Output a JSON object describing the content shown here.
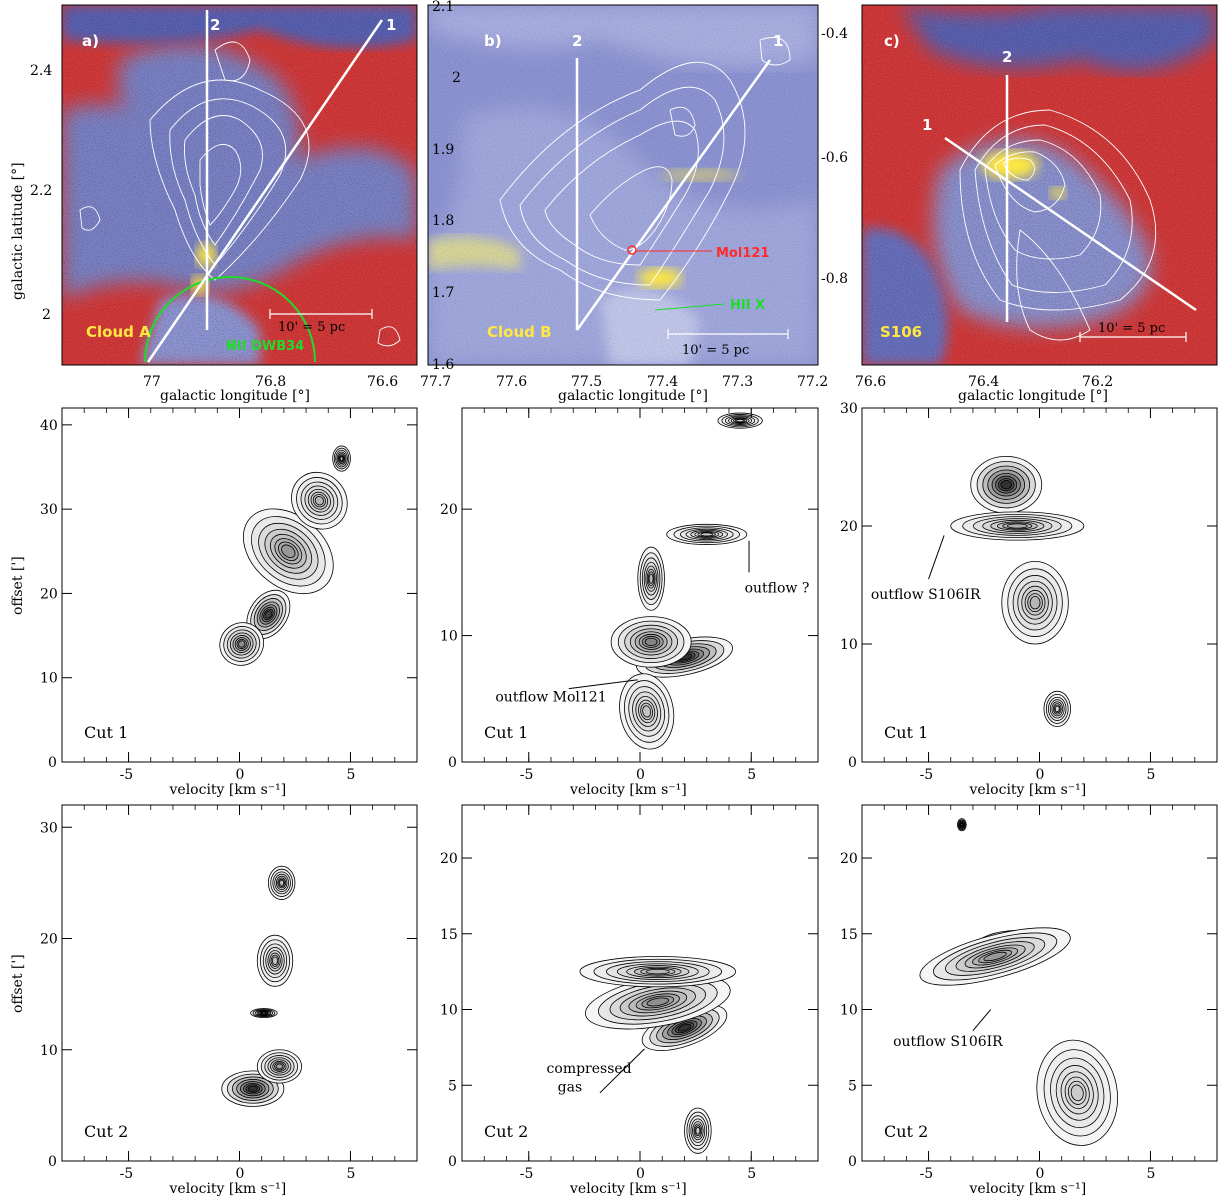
{
  "colors": {
    "map_red": "#d63a3a",
    "map_blue": "#7c84c8",
    "contour_white": "#ffffff",
    "cloud_label_yellow": "#ffe840",
    "hii_green": "#1fdc2a",
    "mol121_red": "#ff2a2a"
  },
  "maps": [
    {
      "panel": "a)",
      "name": "Cloud A",
      "xlabel": "galactic longitude [°]",
      "ylabel": "galactic latitude [°]",
      "xticks": [
        "77",
        "76.8",
        "76.6"
      ],
      "yticks": [
        "2",
        "2.2",
        "2.4"
      ],
      "cut_labels": [
        "2",
        "1"
      ],
      "scalebar": "10' = 5 pc",
      "annotation": "HII DWB34"
    },
    {
      "panel": "b)",
      "name": "Cloud B",
      "xlabel": "galactic longitude [°]",
      "ylabel": "",
      "xticks": [
        "77.7",
        "77.6",
        "77.5",
        "77.4",
        "77.3",
        "77.2"
      ],
      "yticks": [
        "1.6",
        "1.7",
        "1.8",
        "1.9",
        "2",
        "2.1"
      ],
      "cut_labels": [
        "2",
        "1"
      ],
      "scalebar": "10' = 5 pc",
      "annotations": [
        "Mol121",
        "HII X"
      ]
    },
    {
      "panel": "c)",
      "name": "S106",
      "xlabel": "galactic longitude [°]",
      "ylabel": "",
      "xticks": [
        "76.6",
        "76.4",
        "76.2"
      ],
      "yticks": [
        "-0.4",
        "-0.6",
        "-0.8"
      ],
      "cut_labels": [
        "2",
        "1"
      ],
      "scalebar": "10' = 5 pc"
    }
  ],
  "chart_data": [
    {
      "type": "heatmap",
      "title": "Cut 1",
      "xlabel": "velocity [km s⁻¹]",
      "ylabel": "offset [']",
      "xlim": [
        -8,
        8
      ],
      "ylim": [
        0,
        42
      ],
      "xticks": [
        "-5",
        "0",
        "5"
      ],
      "yticks": [
        "0",
        "10",
        "20",
        "30",
        "40"
      ],
      "annotations": []
    },
    {
      "type": "heatmap",
      "title": "Cut 1",
      "xlabel": "velocity [km s⁻¹]",
      "ylabel": "",
      "xlim": [
        -8,
        8
      ],
      "ylim": [
        0,
        28
      ],
      "xticks": [
        "-5",
        "0",
        "5"
      ],
      "yticks": [
        "0",
        "10",
        "20"
      ],
      "annotations": [
        "outflow ?",
        "outflow Mol121"
      ]
    },
    {
      "type": "heatmap",
      "title": "Cut 1",
      "xlabel": "velocity [km s⁻¹]",
      "ylabel": "",
      "xlim": [
        -8,
        8
      ],
      "ylim": [
        0,
        30
      ],
      "xticks": [
        "-5",
        "0",
        "5"
      ],
      "yticks": [
        "0",
        "10",
        "20",
        "30"
      ],
      "annotations": [
        "outflow S106IR"
      ]
    },
    {
      "type": "heatmap",
      "title": "Cut 2",
      "xlabel": "velocity [km s⁻¹]",
      "ylabel": "offset [']",
      "xlim": [
        -8,
        8
      ],
      "ylim": [
        0,
        32
      ],
      "xticks": [
        "-5",
        "0",
        "5"
      ],
      "yticks": [
        "0",
        "10",
        "20",
        "30"
      ],
      "annotations": []
    },
    {
      "type": "heatmap",
      "title": "Cut 2",
      "xlabel": "velocity [km s⁻¹]",
      "ylabel": "",
      "xlim": [
        -8,
        8
      ],
      "ylim": [
        0,
        23.5
      ],
      "xticks": [
        "-5",
        "0",
        "5"
      ],
      "yticks": [
        "0",
        "5",
        "10",
        "15",
        "20"
      ],
      "annotations": [
        "compressed",
        "gas"
      ]
    },
    {
      "type": "heatmap",
      "title": "Cut 2",
      "xlabel": "velocity [km s⁻¹]",
      "ylabel": "",
      "xlim": [
        -8,
        8
      ],
      "ylim": [
        0,
        23.5
      ],
      "xticks": [
        "-5",
        "0",
        "5"
      ],
      "yticks": [
        "0",
        "5",
        "10",
        "15",
        "20"
      ],
      "annotations": [
        "outflow S106IR"
      ]
    }
  ]
}
